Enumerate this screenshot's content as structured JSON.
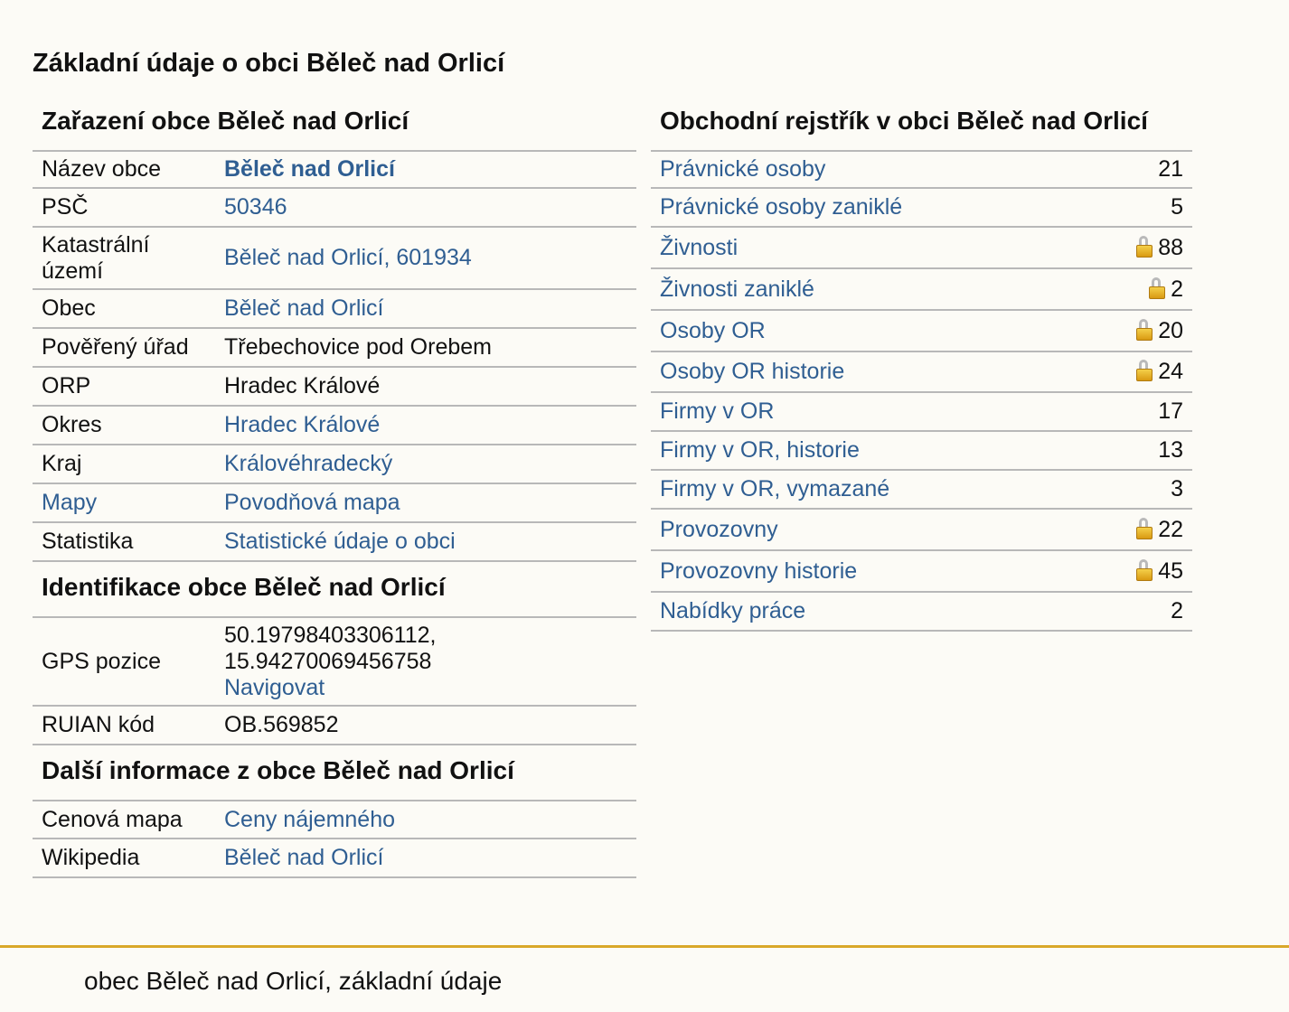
{
  "page_title": "Základní údaje o obci Běleč nad Orlicí",
  "zarazeni": {
    "title": "Zařazení obce Běleč nad Orlicí",
    "rows": [
      {
        "label": "Název obce",
        "value": "Běleč nad Orlicí"
      },
      {
        "label": "PSČ",
        "value": "50346"
      },
      {
        "label": "Katastrální území",
        "value": "Běleč nad Orlicí, 601934"
      },
      {
        "label": "Obec",
        "value": "Běleč nad Orlicí"
      },
      {
        "label": "Pověřený úřad",
        "value": "Třebechovice pod Orebem"
      },
      {
        "label": "ORP",
        "value": "Hradec Králové"
      },
      {
        "label": "Okres",
        "value": "Hradec Králové"
      },
      {
        "label": "Kraj",
        "value": "Královéhradecký"
      },
      {
        "label": "Mapy",
        "value": "Povodňová mapa"
      },
      {
        "label": "Statistika",
        "value": "Statistické údaje o obci"
      }
    ]
  },
  "identifikace": {
    "title": "Identifikace obce Běleč nad Orlicí",
    "gps_label": "GPS pozice",
    "gps_line1": "50.19798403306112,",
    "gps_line2": "15.94270069456758",
    "navigate": "Navigovat",
    "ruian_label": "RUIAN kód",
    "ruian_value": "OB.569852"
  },
  "dalsi": {
    "title": "Další informace z obce Běleč nad Orlicí",
    "rows": [
      {
        "label": "Cenová mapa",
        "value": "Ceny nájemného"
      },
      {
        "label": "Wikipedia",
        "value": "Běleč nad Orlicí"
      }
    ]
  },
  "rejstrik": {
    "title": "Obchodní rejstřík v obci Běleč nad Orlicí",
    "rows": [
      {
        "label": "Právnické osoby",
        "count": "21",
        "locked": false
      },
      {
        "label": "Právnické osoby zaniklé",
        "count": "5",
        "locked": false
      },
      {
        "label": "Živnosti",
        "count": "88",
        "locked": true
      },
      {
        "label": "Živnosti zaniklé",
        "count": "2",
        "locked": true
      },
      {
        "label": "Osoby OR",
        "count": "20",
        "locked": true
      },
      {
        "label": "Osoby OR historie",
        "count": "24",
        "locked": true
      },
      {
        "label": "Firmy v OR",
        "count": "17",
        "locked": false
      },
      {
        "label": "Firmy v OR, historie",
        "count": "13",
        "locked": false
      },
      {
        "label": "Firmy v OR, vymazané",
        "count": "3",
        "locked": false
      },
      {
        "label": "Provozovny",
        "count": "22",
        "locked": true
      },
      {
        "label": "Provozovny historie",
        "count": "45",
        "locked": true
      },
      {
        "label": "Nabídky práce",
        "count": "2",
        "locked": false
      }
    ]
  },
  "footer": {
    "text": "obec Běleč nad Orlicí, základní údaje"
  },
  "colors": {
    "link": "#2f5e92",
    "background": "#fcfbf6",
    "footer_rule": "#d9a82a",
    "row_border": "#b8b8b8"
  }
}
